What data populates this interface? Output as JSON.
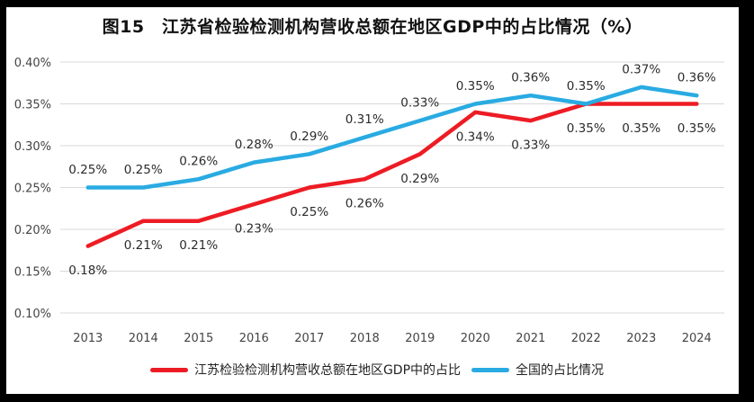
{
  "chart_data": {
    "type": "line",
    "title": "图15　江苏省检验检测机构营收总额在地区GDP中的占比情况（%）",
    "xlabel": "",
    "ylabel": "",
    "unit": "%",
    "grid": true,
    "legend_position": "bottom",
    "categories": [
      "2013",
      "2014",
      "2015",
      "2016",
      "2017",
      "2018",
      "2019",
      "2020",
      "2021",
      "2022",
      "2023",
      "2024"
    ],
    "ylim": [
      0.1,
      0.4
    ],
    "y_ticks": [
      {
        "value": 0.1,
        "label": "0.10%"
      },
      {
        "value": 0.15,
        "label": "0.15%"
      },
      {
        "value": 0.2,
        "label": "0.20%"
      },
      {
        "value": 0.25,
        "label": "0.25%"
      },
      {
        "value": 0.3,
        "label": "0.30%"
      },
      {
        "value": 0.35,
        "label": "0.35%"
      },
      {
        "value": 0.4,
        "label": "0.40%"
      }
    ],
    "series": [
      {
        "name": "江苏检验检测机构营收总额在地区GDP中的占比",
        "color": "#ed1c24",
        "label_position": "below",
        "values": [
          0.18,
          0.21,
          0.21,
          0.23,
          0.25,
          0.26,
          0.29,
          0.34,
          0.33,
          0.35,
          0.35,
          0.35
        ],
        "labels": [
          "0.18%",
          "0.21%",
          "0.21%",
          "0.23%",
          "0.25%",
          "0.26%",
          "0.29%",
          "0.34%",
          "0.33%",
          "0.35%",
          "0.35%",
          "0.35%"
        ]
      },
      {
        "name": "全国的占比情况",
        "color": "#29abe2",
        "label_position": "above",
        "values": [
          0.25,
          0.25,
          0.26,
          0.28,
          0.29,
          0.31,
          0.33,
          0.35,
          0.36,
          0.35,
          0.37,
          0.36
        ],
        "labels": [
          "0.25%",
          "0.25%",
          "0.26%",
          "0.28%",
          "0.29%",
          "0.31%",
          "0.33%",
          "0.35%",
          "0.36%",
          "0.35%",
          "0.37%",
          "0.36%"
        ]
      }
    ],
    "colors": {
      "background": "#ffffff",
      "border": "#000000",
      "gridline": "#d9d9d9",
      "axis_text": "#444444",
      "data_label_text": "#2b2b2b"
    }
  }
}
